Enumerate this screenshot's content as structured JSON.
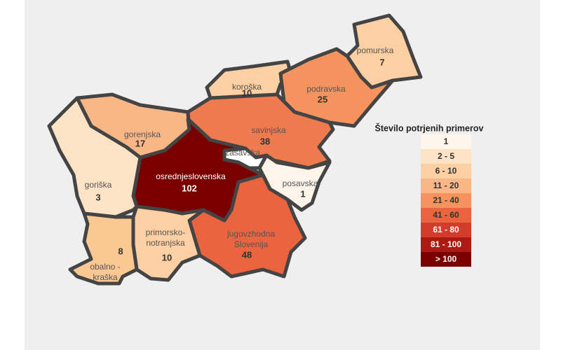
{
  "regions": [
    {
      "label": [
        "pomurska"
      ],
      "value": 7,
      "color": "#fcd0a2"
    },
    {
      "label": [
        "koroška"
      ],
      "value": 10,
      "color": "#fcd0a2"
    },
    {
      "label": [
        "podravska"
      ],
      "value": 25,
      "color": "#f4935e"
    },
    {
      "label": [
        "gorenjska"
      ],
      "value": 17,
      "color": "#f9b787"
    },
    {
      "label": [
        "savinjska"
      ],
      "value": 38,
      "color": "#ee7a4f"
    },
    {
      "label": [
        "zasavska"
      ],
      "color": "#ffffff"
    },
    {
      "label": [
        "osrednjeslovenska"
      ],
      "value": 102,
      "color": "#7a0000"
    },
    {
      "label": [
        "goriška"
      ],
      "value": 3,
      "color": "#fde3c6"
    },
    {
      "label": [
        "posavska"
      ],
      "value": 1,
      "color": "#fdf4ea"
    },
    {
      "label": [
        "jugovzhodna",
        "Slovenija"
      ],
      "value": 48,
      "color": "#e9643f"
    },
    {
      "label": [
        "primorsko-",
        "notranjska"
      ],
      "value": 10,
      "color": "#fcd0a2"
    },
    {
      "label": [
        "obalno -",
        "kraška"
      ],
      "value": 8,
      "color": "#fbc894"
    }
  ],
  "legend": {
    "title": "Število potrjenih primerov",
    "bins": [
      {
        "label": "1",
        "color": "#fdf4ea"
      },
      {
        "label": "2 - 5",
        "color": "#fde3c6"
      },
      {
        "label": "6 - 10",
        "color": "#fcd0a2"
      },
      {
        "label": "11 - 20",
        "color": "#f9b787"
      },
      {
        "label": "21 - 40",
        "color": "#f4935e"
      },
      {
        "label": "41 - 60",
        "color": "#e9643f"
      },
      {
        "label": "61 - 80",
        "color": "#d33b2b"
      },
      {
        "label": "81 - 100",
        "color": "#ac1a14"
      },
      {
        "label": "> 100",
        "color": "#7a0000"
      }
    ]
  }
}
